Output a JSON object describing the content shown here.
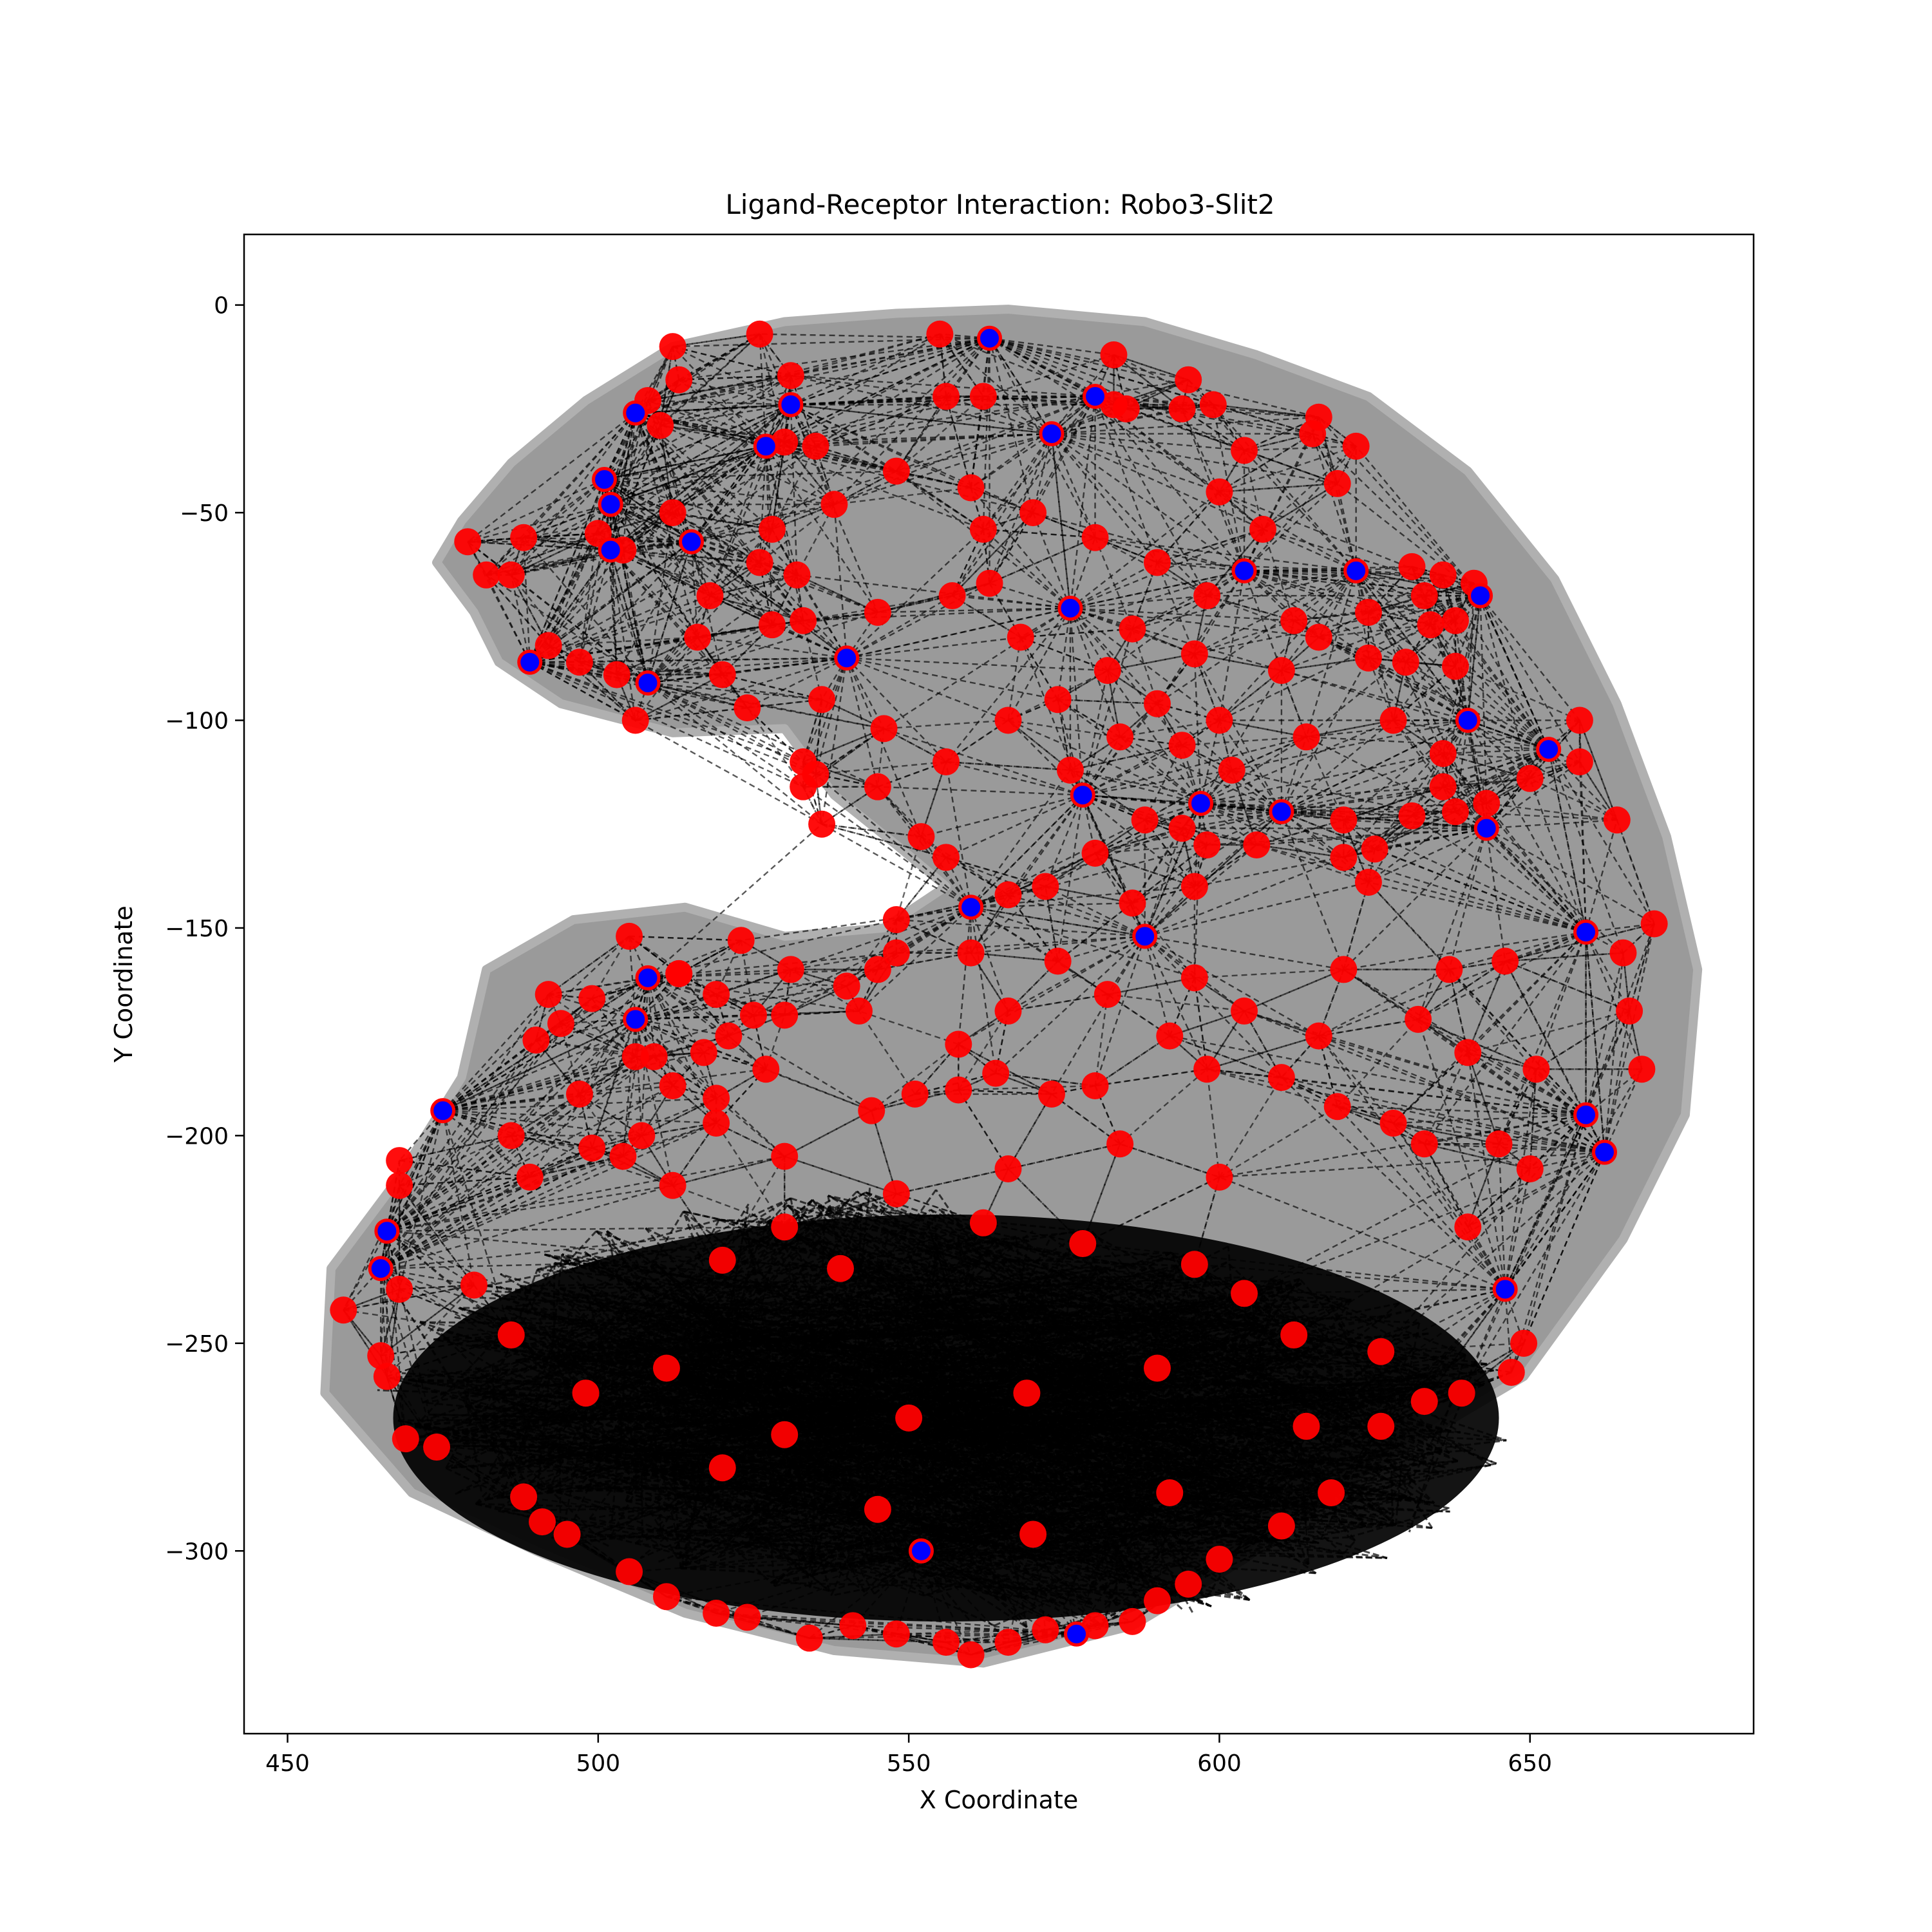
{
  "chart_data": {
    "type": "scatter",
    "title": "Ligand-Receptor Interaction: Robo3-Slit2",
    "xlabel": "X Coordinate",
    "ylabel": "Y Coordinate",
    "xlim": [
      443,
      686
    ],
    "ylim": [
      -344,
      17
    ],
    "x_ticks": [
      450,
      500,
      550,
      600,
      650
    ],
    "y_ticks": [
      0,
      -50,
      -100,
      -150,
      -200,
      -250,
      -300
    ],
    "grid": false,
    "legend": "none",
    "colors": {
      "tissue": "#9a9a9a",
      "ligand": "#ff0000",
      "receptor": "#0000ff",
      "edges": "#000000"
    },
    "tissue_outline": [
      [
        478,
        -52
      ],
      [
        486,
        -38
      ],
      [
        498,
        -23
      ],
      [
        512,
        -10
      ],
      [
        530,
        -4
      ],
      [
        548,
        -2
      ],
      [
        566,
        -1
      ],
      [
        588,
        -4
      ],
      [
        606,
        -12
      ],
      [
        624,
        -22
      ],
      [
        640,
        -40
      ],
      [
        654,
        -66
      ],
      [
        664,
        -96
      ],
      [
        672,
        -128
      ],
      [
        677,
        -160
      ],
      [
        675,
        -195
      ],
      [
        665,
        -225
      ],
      [
        649,
        -258
      ],
      [
        622,
        -282
      ],
      [
        604,
        -302
      ],
      [
        586,
        -318
      ],
      [
        562,
        -327
      ],
      [
        538,
        -324
      ],
      [
        514,
        -315
      ],
      [
        490,
        -300
      ],
      [
        470,
        -286
      ],
      [
        456,
        -262
      ],
      [
        457,
        -232
      ],
      [
        468,
        -210
      ],
      [
        478,
        -186
      ],
      [
        482,
        -160
      ],
      [
        496,
        -148
      ],
      [
        514,
        -145
      ],
      [
        530,
        -152
      ],
      [
        546,
        -150
      ],
      [
        556,
        -140
      ],
      [
        548,
        -130
      ],
      [
        538,
        -118
      ],
      [
        530,
        -102
      ],
      [
        512,
        -103
      ],
      [
        494,
        -96
      ],
      [
        484,
        -86
      ],
      [
        480,
        -74
      ],
      [
        474,
        -62
      ]
    ],
    "receptor_points": [
      [
        563,
        -8
      ],
      [
        531,
        -24
      ],
      [
        506,
        -26
      ],
      [
        527,
        -34
      ],
      [
        501,
        -42
      ],
      [
        502,
        -48
      ],
      [
        580,
        -22
      ],
      [
        573,
        -31
      ],
      [
        515,
        -57
      ],
      [
        502,
        -59
      ],
      [
        489,
        -86
      ],
      [
        508,
        -91
      ],
      [
        642,
        -70
      ],
      [
        622,
        -64
      ],
      [
        604,
        -64
      ],
      [
        640,
        -100
      ],
      [
        653,
        -107
      ],
      [
        643,
        -126
      ],
      [
        659,
        -151
      ],
      [
        610,
        -122
      ],
      [
        588,
        -152
      ],
      [
        578,
        -118
      ],
      [
        508,
        -162
      ],
      [
        506,
        -172
      ],
      [
        475,
        -194
      ],
      [
        659,
        -195
      ],
      [
        662,
        -204
      ],
      [
        646,
        -237
      ],
      [
        466,
        -223
      ],
      [
        465,
        -232
      ],
      [
        560,
        -145
      ],
      [
        597,
        -120
      ],
      [
        540,
        -85
      ],
      [
        576,
        -73
      ],
      [
        552,
        -300
      ],
      [
        577,
        -320
      ]
    ],
    "ligand_points": [
      [
        512,
        -10
      ],
      [
        526,
        -7
      ],
      [
        555,
        -7
      ],
      [
        531,
        -17
      ],
      [
        513,
        -18
      ],
      [
        583,
        -12
      ],
      [
        595,
        -18
      ],
      [
        599,
        -24
      ],
      [
        594,
        -25
      ],
      [
        508,
        -23
      ],
      [
        556,
        -22
      ],
      [
        562,
        -22
      ],
      [
        583,
        -24
      ],
      [
        585,
        -25
      ],
      [
        616,
        -27
      ],
      [
        622,
        -34
      ],
      [
        615,
        -31
      ],
      [
        604,
        -35
      ],
      [
        510,
        -29
      ],
      [
        530,
        -33
      ],
      [
        535,
        -34
      ],
      [
        479,
        -57
      ],
      [
        482,
        -65
      ],
      [
        486,
        -65
      ],
      [
        488,
        -56
      ],
      [
        500,
        -55
      ],
      [
        512,
        -50
      ],
      [
        504,
        -59
      ],
      [
        526,
        -62
      ],
      [
        532,
        -65
      ],
      [
        562,
        -54
      ],
      [
        600,
        -45
      ],
      [
        607,
        -54
      ],
      [
        619,
        -43
      ],
      [
        631,
        -63
      ],
      [
        636,
        -65
      ],
      [
        641,
        -67
      ],
      [
        633,
        -70
      ],
      [
        638,
        -76
      ],
      [
        634,
        -77
      ],
      [
        630,
        -86
      ],
      [
        624,
        -85
      ],
      [
        638,
        -87
      ],
      [
        492,
        -82
      ],
      [
        497,
        -86
      ],
      [
        503,
        -89
      ],
      [
        506,
        -100
      ],
      [
        520,
        -89
      ],
      [
        524,
        -97
      ],
      [
        528,
        -77
      ],
      [
        533,
        -76
      ],
      [
        545,
        -74
      ],
      [
        557,
        -70
      ],
      [
        563,
        -67
      ],
      [
        658,
        -100
      ],
      [
        658,
        -110
      ],
      [
        650,
        -114
      ],
      [
        636,
        -116
      ],
      [
        638,
        -122
      ],
      [
        643,
        -120
      ],
      [
        631,
        -123
      ],
      [
        664,
        -124
      ],
      [
        620,
        -124
      ],
      [
        625,
        -131
      ],
      [
        620,
        -133
      ],
      [
        624,
        -139
      ],
      [
        606,
        -130
      ],
      [
        598,
        -130
      ],
      [
        594,
        -126
      ],
      [
        596,
        -140
      ],
      [
        533,
        -110
      ],
      [
        533,
        -116
      ],
      [
        536,
        -125
      ],
      [
        535,
        -113
      ],
      [
        545,
        -116
      ],
      [
        552,
        -128
      ],
      [
        556,
        -133
      ],
      [
        670,
        -149
      ],
      [
        665,
        -156
      ],
      [
        666,
        -170
      ],
      [
        668,
        -184
      ],
      [
        651,
        -184
      ],
      [
        646,
        -158
      ],
      [
        637,
        -160
      ],
      [
        505,
        -152
      ],
      [
        523,
        -153
      ],
      [
        531,
        -160
      ],
      [
        513,
        -161
      ],
      [
        540,
        -164
      ],
      [
        542,
        -170
      ],
      [
        545,
        -160
      ],
      [
        548,
        -156
      ],
      [
        492,
        -166
      ],
      [
        499,
        -167
      ],
      [
        490,
        -177
      ],
      [
        494,
        -173
      ],
      [
        513,
        -161
      ],
      [
        519,
        -166
      ],
      [
        521,
        -176
      ],
      [
        530,
        -171
      ],
      [
        525,
        -171
      ],
      [
        506,
        -181
      ],
      [
        509,
        -181
      ],
      [
        517,
        -180
      ],
      [
        512,
        -188
      ],
      [
        519,
        -197
      ],
      [
        527,
        -184
      ],
      [
        519,
        -191
      ],
      [
        497,
        -190
      ],
      [
        486,
        -200
      ],
      [
        489,
        -210
      ],
      [
        499,
        -203
      ],
      [
        468,
        -206
      ],
      [
        468,
        -212
      ],
      [
        507,
        -200
      ],
      [
        504,
        -205
      ],
      [
        530,
        -205
      ],
      [
        544,
        -194
      ],
      [
        551,
        -190
      ],
      [
        558,
        -189
      ],
      [
        564,
        -185
      ],
      [
        573,
        -190
      ],
      [
        580,
        -188
      ],
      [
        598,
        -184
      ],
      [
        610,
        -186
      ],
      [
        619,
        -193
      ],
      [
        628,
        -197
      ],
      [
        633,
        -202
      ],
      [
        645,
        -202
      ],
      [
        650,
        -208
      ],
      [
        640,
        -222
      ],
      [
        649,
        -250
      ],
      [
        647,
        -257
      ],
      [
        639,
        -262
      ],
      [
        633,
        -264
      ],
      [
        626,
        -270
      ],
      [
        618,
        -286
      ],
      [
        610,
        -294
      ],
      [
        600,
        -302
      ],
      [
        595,
        -308
      ],
      [
        590,
        -312
      ],
      [
        586,
        -317
      ],
      [
        580,
        -318
      ],
      [
        572,
        -319
      ],
      [
        566,
        -322
      ],
      [
        560,
        -325
      ],
      [
        556,
        -322
      ],
      [
        548,
        -320
      ],
      [
        541,
        -318
      ],
      [
        534,
        -321
      ],
      [
        524,
        -316
      ],
      [
        519,
        -315
      ],
      [
        511,
        -311
      ],
      [
        505,
        -305
      ],
      [
        495,
        -296
      ],
      [
        491,
        -293
      ],
      [
        488,
        -287
      ],
      [
        474,
        -275
      ],
      [
        469,
        -273
      ],
      [
        466,
        -258
      ],
      [
        465,
        -253
      ],
      [
        459,
        -242
      ],
      [
        468,
        -237
      ],
      [
        520,
        -230
      ],
      [
        539,
        -232
      ],
      [
        562,
        -221
      ],
      [
        578,
        -226
      ],
      [
        596,
        -231
      ],
      [
        604,
        -238
      ],
      [
        612,
        -248
      ],
      [
        590,
        -256
      ],
      [
        569,
        -262
      ],
      [
        550,
        -268
      ],
      [
        530,
        -272
      ],
      [
        511,
        -256
      ],
      [
        498,
        -262
      ],
      [
        486,
        -248
      ],
      [
        480,
        -236
      ],
      [
        520,
        -280
      ],
      [
        545,
        -290
      ],
      [
        570,
        -296
      ],
      [
        592,
        -286
      ],
      [
        614,
        -270
      ],
      [
        626,
        -252
      ],
      [
        600,
        -210
      ],
      [
        584,
        -202
      ],
      [
        566,
        -208
      ],
      [
        548,
        -214
      ],
      [
        530,
        -222
      ],
      [
        512,
        -212
      ],
      [
        556,
        -110
      ],
      [
        566,
        -100
      ],
      [
        574,
        -95
      ],
      [
        582,
        -88
      ],
      [
        590,
        -96
      ],
      [
        594,
        -106
      ],
      [
        600,
        -100
      ],
      [
        610,
        -88
      ],
      [
        616,
        -80
      ],
      [
        624,
        -74
      ],
      [
        612,
        -76
      ],
      [
        598,
        -70
      ],
      [
        590,
        -62
      ],
      [
        580,
        -56
      ],
      [
        570,
        -50
      ],
      [
        560,
        -44
      ],
      [
        548,
        -40
      ],
      [
        538,
        -48
      ],
      [
        528,
        -54
      ],
      [
        518,
        -70
      ],
      [
        516,
        -80
      ],
      [
        536,
        -95
      ],
      [
        546,
        -102
      ],
      [
        568,
        -80
      ],
      [
        586,
        -78
      ],
      [
        596,
        -84
      ],
      [
        604,
        -170
      ],
      [
        592,
        -176
      ],
      [
        582,
        -166
      ],
      [
        574,
        -158
      ],
      [
        566,
        -170
      ],
      [
        558,
        -178
      ],
      [
        620,
        -160
      ],
      [
        632,
        -172
      ],
      [
        640,
        -180
      ],
      [
        616,
        -176
      ],
      [
        596,
        -162
      ],
      [
        586,
        -144
      ],
      [
        572,
        -140
      ],
      [
        580,
        -132
      ],
      [
        588,
        -124
      ],
      [
        602,
        -112
      ],
      [
        614,
        -104
      ],
      [
        628,
        -100
      ],
      [
        636,
        -108
      ],
      [
        548,
        -148
      ],
      [
        560,
        -156
      ],
      [
        566,
        -142
      ],
      [
        576,
        -112
      ],
      [
        584,
        -104
      ]
    ]
  }
}
